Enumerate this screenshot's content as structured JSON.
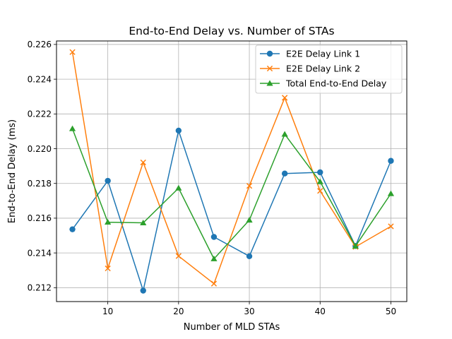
{
  "chart_data": {
    "type": "line",
    "title": "End-to-End Delay vs. Number of STAs",
    "xlabel": "Number of MLD STAs",
    "ylabel": "End-to-End Delay (ms)",
    "xlim": [
      2.75,
      52.25
    ],
    "ylim": [
      0.2112,
      0.2262
    ],
    "xticks": [
      10,
      20,
      30,
      40,
      50
    ],
    "yticks": [
      0.212,
      0.214,
      0.216,
      0.218,
      0.22,
      0.222,
      0.224,
      0.226
    ],
    "ytick_labels": [
      "0.212",
      "0.214",
      "0.216",
      "0.218",
      "0.220",
      "0.222",
      "0.224",
      "0.226"
    ],
    "grid": true,
    "legend_position": "top-right",
    "x": [
      5,
      10,
      15,
      20,
      25,
      30,
      35,
      40,
      45,
      50
    ],
    "series": [
      {
        "name": "E2E Delay Link 1",
        "color": "#1f77b4",
        "marker": "circle",
        "values": [
          0.21536,
          0.21815,
          0.21183,
          0.22104,
          0.21492,
          0.21381,
          0.21857,
          0.21864,
          0.2144,
          0.2193
        ]
      },
      {
        "name": "E2E Delay Link 2",
        "color": "#ff7f0e",
        "marker": "x",
        "values": [
          0.22556,
          0.21311,
          0.21921,
          0.21382,
          0.21223,
          0.21786,
          0.22293,
          0.21757,
          0.21435,
          0.21553
        ]
      },
      {
        "name": "Total End-to-End Delay",
        "color": "#2ca02c",
        "marker": "triangle",
        "values": [
          0.22115,
          0.21577,
          0.21573,
          0.21773,
          0.21366,
          0.21589,
          0.22083,
          0.2181,
          0.21439,
          0.21741
        ]
      }
    ]
  }
}
